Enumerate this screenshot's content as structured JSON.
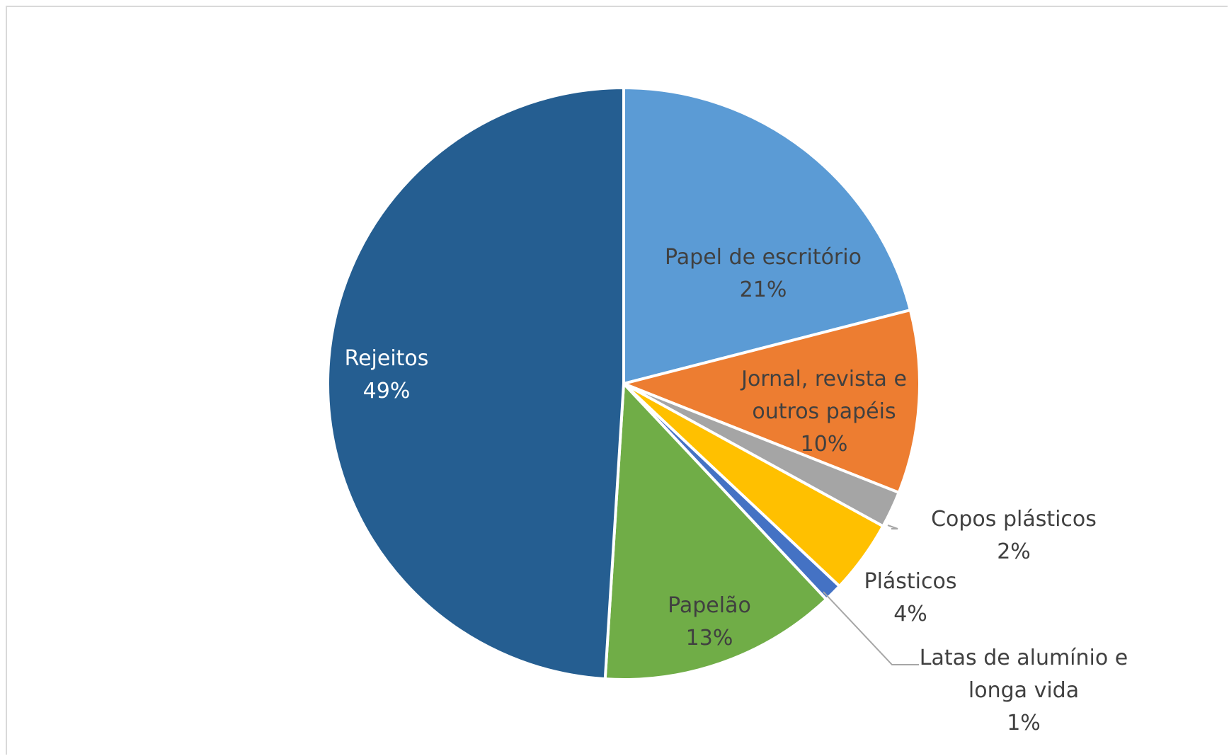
{
  "chart_data": {
    "type": "pie",
    "categories": [
      "Papel de escritório",
      "Jornal, revista e outros papéis",
      "Copos plásticos",
      "Plásticos",
      "Latas de alumínio e longa vida",
      "Papelão",
      "Rejeitos"
    ],
    "values": [
      21,
      10,
      2,
      4,
      1,
      13,
      49
    ],
    "unit": "%",
    "colors": [
      "#5B9BD5",
      "#ED7D31",
      "#A5A5A5",
      "#FFC000",
      "#4472C4",
      "#70AD47",
      "#255E91"
    ],
    "labels": [
      {
        "lines": [
          "Papel de escritório",
          "21%"
        ],
        "color": "#404040"
      },
      {
        "lines": [
          "Jornal, revista e",
          "outros papéis",
          "10%"
        ],
        "color": "#404040"
      },
      {
        "lines": [
          "Copos plásticos",
          "2%"
        ],
        "color": "#404040"
      },
      {
        "lines": [
          "Plásticos",
          "4%"
        ],
        "color": "#404040"
      },
      {
        "lines": [
          "Latas de alumínio e",
          "longa vida",
          "1%"
        ],
        "color": "#404040"
      },
      {
        "lines": [
          "Papelão",
          "13%"
        ],
        "color": "#404040"
      },
      {
        "lines": [
          "Rejeitos",
          "49%"
        ],
        "color": "#ffffff"
      }
    ],
    "start_angle_deg": 0,
    "direction": "clockwise",
    "legend": "none",
    "title": ""
  }
}
